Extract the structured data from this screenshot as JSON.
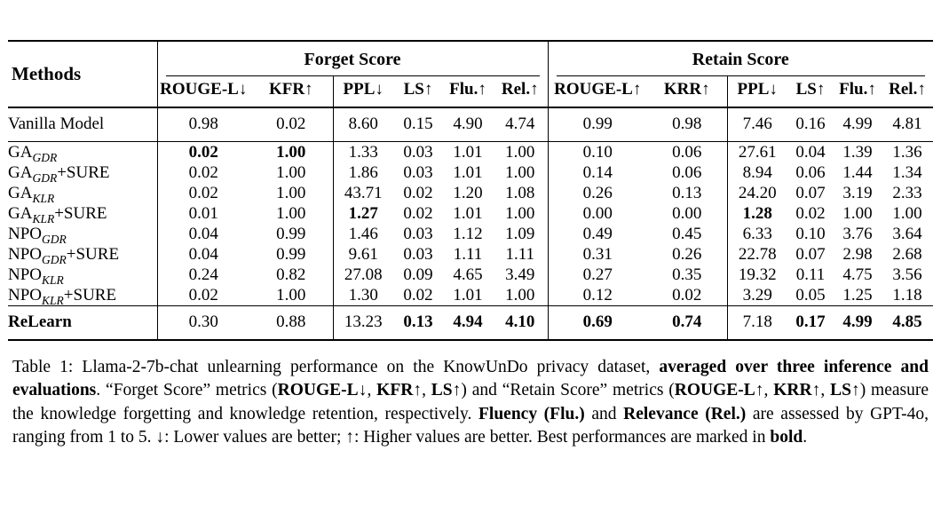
{
  "colors": {
    "text": "#000000",
    "rule": "#000000",
    "background": "#ffffff"
  },
  "table": {
    "header": {
      "methods": "Methods",
      "groups": [
        {
          "label": "Forget Score",
          "columns": [
            "ROUGE-L↓",
            "KFR↑",
            "PPL↓",
            "LS↑",
            "Flu.↑",
            "Rel.↑"
          ]
        },
        {
          "label": "Retain Score",
          "columns": [
            "ROUGE-L↑",
            "KRR↑",
            "PPL↓",
            "LS↑",
            "Flu.↑",
            "Rel.↑"
          ]
        }
      ]
    },
    "rows": [
      {
        "method": {
          "base": "Vanilla Model",
          "sub": "",
          "suffix": ""
        },
        "section": "vanilla",
        "bold_method": false,
        "values": [
          "0.98",
          "0.02",
          "8.60",
          "0.15",
          "4.90",
          "4.74",
          "0.99",
          "0.98",
          "7.46",
          "0.16",
          "4.99",
          "4.81"
        ],
        "bold_values": []
      },
      {
        "method": {
          "base": "GA",
          "sub": "GDR",
          "suffix": ""
        },
        "section": "mid",
        "bold_method": false,
        "values": [
          "0.02",
          "1.00",
          "1.33",
          "0.03",
          "1.01",
          "1.00",
          "0.10",
          "0.06",
          "27.61",
          "0.04",
          "1.39",
          "1.36"
        ],
        "bold_values": [
          0,
          1
        ]
      },
      {
        "method": {
          "base": "GA",
          "sub": "GDR",
          "suffix": "+SURE"
        },
        "section": "mid",
        "bold_method": false,
        "values": [
          "0.02",
          "1.00",
          "1.86",
          "0.03",
          "1.01",
          "1.00",
          "0.14",
          "0.06",
          "8.94",
          "0.06",
          "1.44",
          "1.34"
        ],
        "bold_values": []
      },
      {
        "method": {
          "base": "GA",
          "sub": "KLR",
          "suffix": ""
        },
        "section": "mid",
        "bold_method": false,
        "values": [
          "0.02",
          "1.00",
          "43.71",
          "0.02",
          "1.20",
          "1.08",
          "0.26",
          "0.13",
          "24.20",
          "0.07",
          "3.19",
          "2.33"
        ],
        "bold_values": []
      },
      {
        "method": {
          "base": "GA",
          "sub": "KLR",
          "suffix": "+SURE"
        },
        "section": "mid",
        "bold_method": false,
        "values": [
          "0.01",
          "1.00",
          "1.27",
          "0.02",
          "1.01",
          "1.00",
          "0.00",
          "0.00",
          "1.28",
          "0.02",
          "1.00",
          "1.00"
        ],
        "bold_values": [
          2,
          8
        ]
      },
      {
        "method": {
          "base": "NPO",
          "sub": "GDR",
          "suffix": ""
        },
        "section": "mid",
        "bold_method": false,
        "values": [
          "0.04",
          "0.99",
          "1.46",
          "0.03",
          "1.12",
          "1.09",
          "0.49",
          "0.45",
          "6.33",
          "0.10",
          "3.76",
          "3.64"
        ],
        "bold_values": []
      },
      {
        "method": {
          "base": "NPO",
          "sub": "GDR",
          "suffix": "+SURE"
        },
        "section": "mid",
        "bold_method": false,
        "values": [
          "0.04",
          "0.99",
          "9.61",
          "0.03",
          "1.11",
          "1.11",
          "0.31",
          "0.26",
          "22.78",
          "0.07",
          "2.98",
          "2.68"
        ],
        "bold_values": []
      },
      {
        "method": {
          "base": "NPO",
          "sub": "KLR",
          "suffix": ""
        },
        "section": "mid",
        "bold_method": false,
        "values": [
          "0.24",
          "0.82",
          "27.08",
          "0.09",
          "4.65",
          "3.49",
          "0.27",
          "0.35",
          "19.32",
          "0.11",
          "4.75",
          "3.56"
        ],
        "bold_values": []
      },
      {
        "method": {
          "base": "NPO",
          "sub": "KLR",
          "suffix": "+SURE"
        },
        "section": "mid",
        "bold_method": false,
        "values": [
          "0.02",
          "1.00",
          "1.30",
          "0.02",
          "1.01",
          "1.00",
          "0.12",
          "0.02",
          "3.29",
          "0.05",
          "1.25",
          "1.18"
        ],
        "bold_values": []
      },
      {
        "method": {
          "base": "ReLearn",
          "sub": "",
          "suffix": ""
        },
        "section": "relearn",
        "bold_method": true,
        "values": [
          "0.30",
          "0.88",
          "13.23",
          "0.13",
          "4.94",
          "4.10",
          "0.69",
          "0.74",
          "7.18",
          "0.17",
          "4.99",
          "4.85"
        ],
        "bold_values": [
          3,
          4,
          5,
          6,
          7,
          9,
          10,
          11
        ]
      }
    ]
  },
  "caption": {
    "segments": [
      {
        "text": "Table 1: Llama-2-7b-chat unlearning performance on the KnowUnDo privacy dataset, ",
        "bold": false
      },
      {
        "text": "averaged over three inference and evaluations",
        "bold": true
      },
      {
        "text": ". “Forget Score” metrics (",
        "bold": false
      },
      {
        "text": "ROUGE-L",
        "bold": true
      },
      {
        "text": "↓, ",
        "bold": false
      },
      {
        "text": "KFR",
        "bold": true
      },
      {
        "text": "↑, ",
        "bold": false
      },
      {
        "text": "LS",
        "bold": true
      },
      {
        "text": "↑) and “Retain Score” metrics (",
        "bold": false
      },
      {
        "text": "ROUGE-L",
        "bold": true
      },
      {
        "text": "↑, ",
        "bold": false
      },
      {
        "text": "KRR",
        "bold": true
      },
      {
        "text": "↑, ",
        "bold": false
      },
      {
        "text": "LS",
        "bold": true
      },
      {
        "text": "↑) measure the knowledge forgetting and knowledge retention, respectively. ",
        "bold": false
      },
      {
        "text": "Fluency (Flu.)",
        "bold": true
      },
      {
        "text": " and ",
        "bold": false
      },
      {
        "text": "Relevance (Rel.)",
        "bold": true
      },
      {
        "text": " are assessed by GPT-4o, ranging from 1 to 5. ↓: Lower values are better; ↑: Higher values are better. Best performances are marked in ",
        "bold": false
      },
      {
        "text": "bold",
        "bold": true
      },
      {
        "text": ".",
        "bold": false
      }
    ]
  }
}
